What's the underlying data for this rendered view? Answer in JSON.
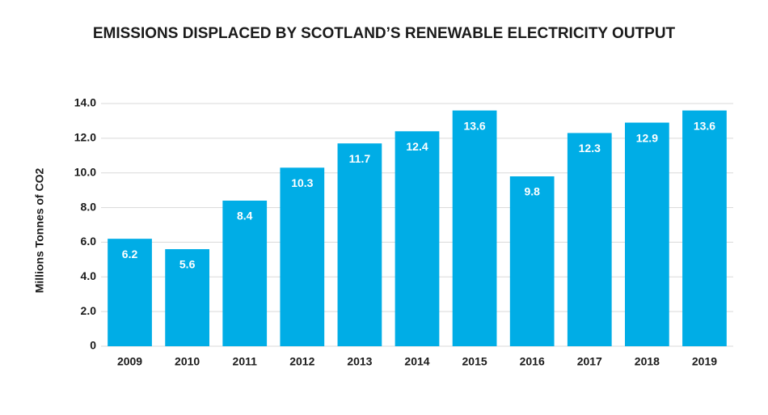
{
  "chart_data": {
    "type": "bar",
    "title": "EMISSIONS DISPLACED BY SCOTLAND’S RENEWABLE ELECTRICITY OUTPUT",
    "y_label": "Millions Tonnes of CO2",
    "categories": [
      "2009",
      "2010",
      "2011",
      "2012",
      "2013",
      "2014",
      "2015",
      "2016",
      "2017",
      "2018",
      "2019"
    ],
    "values": [
      6.2,
      5.6,
      8.4,
      10.3,
      11.7,
      12.4,
      13.6,
      9.8,
      12.3,
      12.9,
      13.6
    ],
    "color": "#00ade6",
    "ylim": [
      0,
      14
    ],
    "yticks": [
      0,
      {
        "value": 2,
        "label": "2.0"
      },
      {
        "value": 4,
        "label": "4.0"
      },
      {
        "value": 6,
        "label": "6.0"
      },
      {
        "value": 8,
        "label": "8.0"
      },
      {
        "value": 10,
        "label": "10.0"
      },
      {
        "value": 12,
        "label": "12.0"
      },
      {
        "value": 14,
        "label": "14.0"
      }
    ],
    "grid": true
  }
}
